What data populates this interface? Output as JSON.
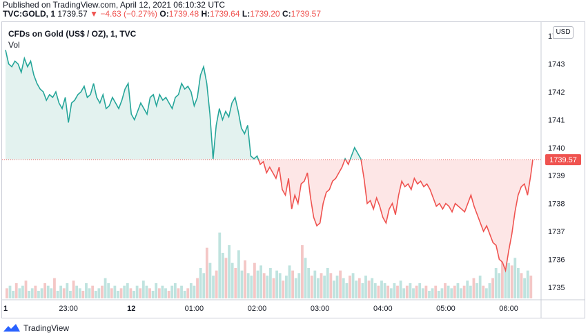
{
  "header": {
    "published": "Published on TradingView.com, April 12, 2021 06:10:32 UTC",
    "symbol": "TVC:GOLD, 1",
    "last": "1739.57",
    "change": "−4.63 (−0.27%)",
    "o_label": "O:",
    "o_value": "1739.48",
    "h_label": "H:",
    "h_value": "1739.64",
    "l_label": "L:",
    "l_value": "1739.20",
    "c_label": "C:",
    "c_value": "1739.57"
  },
  "legend": {
    "title": "CFDs on Gold (US$ / OZ), 1, TVC",
    "vol": "Vol"
  },
  "currency_button": "USD",
  "brand": "TradingView",
  "colors": {
    "up": "#26a69a",
    "down": "#ef5350",
    "up_fill": "#e3f2ef",
    "down_fill": "#fde6e6",
    "grid": "#f0f3fa"
  },
  "chart_data": {
    "type": "area",
    "title": "CFDs on Gold (US$ / OZ), 1, TVC",
    "baseline": 1739.57,
    "last_price_label": "1739.57",
    "ylim": [
      1734.6,
      1744.3
    ],
    "y_ticks": [
      1735,
      1736,
      1737,
      1738,
      1739,
      1740,
      1741,
      1742,
      1743,
      1744
    ],
    "x_ticks": [
      "1",
      "23:00",
      "12",
      "01:00",
      "02:00",
      "03:00",
      "04:00",
      "05:00",
      "06:00"
    ],
    "x_tick_index": [
      0,
      60,
      120,
      180,
      240,
      300,
      360,
      420,
      480
    ],
    "series": [
      {
        "name": "Price",
        "points": [
          [
            0,
            1743.5
          ],
          [
            3,
            1743.0
          ],
          [
            6,
            1742.9
          ],
          [
            9,
            1743.1
          ],
          [
            12,
            1743.0
          ],
          [
            15,
            1742.7
          ],
          [
            18,
            1743.2
          ],
          [
            21,
            1742.9
          ],
          [
            24,
            1743.1
          ],
          [
            27,
            1742.6
          ],
          [
            30,
            1742.3
          ],
          [
            33,
            1742.1
          ],
          [
            36,
            1742.0
          ],
          [
            39,
            1741.7
          ],
          [
            42,
            1741.9
          ],
          [
            45,
            1741.8
          ],
          [
            48,
            1742.0
          ],
          [
            51,
            1741.6
          ],
          [
            54,
            1741.4
          ],
          [
            57,
            1741.8
          ],
          [
            60,
            1740.9
          ],
          [
            63,
            1741.6
          ],
          [
            66,
            1741.7
          ],
          [
            69,
            1741.9
          ],
          [
            72,
            1742.0
          ],
          [
            75,
            1742.2
          ],
          [
            78,
            1741.8
          ],
          [
            81,
            1741.9
          ],
          [
            84,
            1742.3
          ],
          [
            87,
            1741.8
          ],
          [
            90,
            1741.6
          ],
          [
            93,
            1741.9
          ],
          [
            96,
            1741.4
          ],
          [
            99,
            1741.5
          ],
          [
            102,
            1741.8
          ],
          [
            105,
            1741.6
          ],
          [
            108,
            1741.4
          ],
          [
            111,
            1741.7
          ],
          [
            114,
            1742.1
          ],
          [
            117,
            1742.3
          ],
          [
            120,
            1741.2
          ],
          [
            123,
            1741.0
          ],
          [
            126,
            1741.3
          ],
          [
            129,
            1741.6
          ],
          [
            132,
            1741.4
          ],
          [
            135,
            1741.2
          ],
          [
            138,
            1741.8
          ],
          [
            141,
            1741.9
          ],
          [
            144,
            1741.5
          ],
          [
            147,
            1741.9
          ],
          [
            150,
            1741.7
          ],
          [
            153,
            1741.8
          ],
          [
            156,
            1741.6
          ],
          [
            159,
            1741.4
          ],
          [
            162,
            1741.8
          ],
          [
            165,
            1741.9
          ],
          [
            168,
            1742.3
          ],
          [
            171,
            1742.1
          ],
          [
            174,
            1742.2
          ],
          [
            177,
            1742.0
          ],
          [
            180,
            1741.5
          ],
          [
            183,
            1741.8
          ],
          [
            186,
            1742.6
          ],
          [
            189,
            1742.9
          ],
          [
            192,
            1742.3
          ],
          [
            195,
            1741.2
          ],
          [
            198,
            1739.6
          ],
          [
            201,
            1740.8
          ],
          [
            204,
            1741.4
          ],
          [
            207,
            1741.0
          ],
          [
            210,
            1741.3
          ],
          [
            213,
            1741.1
          ],
          [
            216,
            1741.6
          ],
          [
            219,
            1741.8
          ],
          [
            222,
            1741.3
          ],
          [
            225,
            1740.7
          ],
          [
            228,
            1740.5
          ],
          [
            231,
            1740.8
          ],
          [
            234,
            1739.7
          ],
          [
            237,
            1739.6
          ],
          [
            240,
            1739.7
          ],
          [
            243,
            1739.4
          ],
          [
            246,
            1739.5
          ],
          [
            249,
            1739.1
          ],
          [
            252,
            1739.3
          ],
          [
            255,
            1739.1
          ],
          [
            258,
            1738.9
          ],
          [
            261,
            1739.3
          ],
          [
            264,
            1738.5
          ],
          [
            267,
            1738.3
          ],
          [
            270,
            1738.9
          ],
          [
            273,
            1737.8
          ],
          [
            276,
            1738.3
          ],
          [
            279,
            1738.0
          ],
          [
            282,
            1738.7
          ],
          [
            285,
            1738.8
          ],
          [
            288,
            1739.1
          ],
          [
            291,
            1738.2
          ],
          [
            294,
            1737.5
          ],
          [
            297,
            1737.2
          ],
          [
            300,
            1737.3
          ],
          [
            303,
            1738.0
          ],
          [
            306,
            1738.4
          ],
          [
            309,
            1738.5
          ],
          [
            312,
            1738.8
          ],
          [
            315,
            1738.9
          ],
          [
            318,
            1739.1
          ],
          [
            321,
            1739.3
          ],
          [
            324,
            1739.6
          ],
          [
            327,
            1739.4
          ],
          [
            330,
            1739.7
          ],
          [
            333,
            1740.0
          ],
          [
            336,
            1739.8
          ],
          [
            339,
            1739.6
          ],
          [
            342,
            1738.9
          ],
          [
            345,
            1738.0
          ],
          [
            348,
            1738.1
          ],
          [
            351,
            1737.8
          ],
          [
            354,
            1738.2
          ],
          [
            357,
            1737.9
          ],
          [
            360,
            1737.5
          ],
          [
            363,
            1737.3
          ],
          [
            366,
            1737.8
          ],
          [
            369,
            1738.0
          ],
          [
            372,
            1737.6
          ],
          [
            375,
            1738.3
          ],
          [
            378,
            1738.8
          ],
          [
            381,
            1738.6
          ],
          [
            384,
            1738.7
          ],
          [
            387,
            1738.5
          ],
          [
            390,
            1738.9
          ],
          [
            393,
            1738.7
          ],
          [
            396,
            1738.8
          ],
          [
            399,
            1738.6
          ],
          [
            402,
            1738.7
          ],
          [
            405,
            1738.5
          ],
          [
            408,
            1738.2
          ],
          [
            411,
            1737.9
          ],
          [
            414,
            1738.0
          ],
          [
            417,
            1737.8
          ],
          [
            420,
            1738.0
          ],
          [
            423,
            1737.9
          ],
          [
            426,
            1737.7
          ],
          [
            429,
            1738.0
          ],
          [
            432,
            1737.9
          ],
          [
            435,
            1737.8
          ],
          [
            438,
            1737.7
          ],
          [
            441,
            1738.0
          ],
          [
            444,
            1738.3
          ],
          [
            447,
            1737.9
          ],
          [
            450,
            1737.6
          ],
          [
            453,
            1737.3
          ],
          [
            456,
            1737.0
          ],
          [
            459,
            1737.2
          ],
          [
            462,
            1736.9
          ],
          [
            465,
            1736.6
          ],
          [
            468,
            1736.5
          ],
          [
            471,
            1736.0
          ],
          [
            474,
            1735.9
          ],
          [
            477,
            1735.6
          ],
          [
            480,
            1736.3
          ],
          [
            483,
            1736.9
          ],
          [
            486,
            1737.7
          ],
          [
            489,
            1738.3
          ],
          [
            492,
            1738.6
          ],
          [
            495,
            1738.7
          ],
          [
            498,
            1738.3
          ],
          [
            501,
            1739.0
          ],
          [
            503,
            1739.57
          ]
        ]
      },
      {
        "name": "Vol",
        "values": [
          4,
          5,
          3,
          6,
          4,
          5,
          7,
          3,
          4,
          5,
          3,
          4,
          6,
          5,
          4,
          8,
          3,
          5,
          4,
          6,
          3,
          7,
          5,
          4,
          3,
          6,
          4,
          5,
          3,
          4,
          5,
          8,
          6,
          4,
          5,
          3,
          4,
          5,
          6,
          4,
          3,
          5,
          4,
          7,
          5,
          4,
          3,
          6,
          4,
          5,
          4,
          3,
          5,
          6,
          4,
          5,
          3,
          4,
          6,
          5,
          8,
          12,
          10,
          20,
          14,
          9,
          11,
          26,
          18,
          16,
          21,
          14,
          12,
          19,
          11,
          15,
          10,
          9,
          14,
          11,
          13,
          10,
          9,
          12,
          8,
          11,
          10,
          7,
          9,
          13,
          11,
          8,
          10,
          21,
          16,
          12,
          9,
          11,
          8,
          10,
          9,
          12,
          10,
          7,
          9,
          11,
          8,
          6,
          9,
          10,
          7,
          8,
          6,
          9,
          7,
          8,
          6,
          5,
          7,
          6,
          5,
          4,
          6,
          5,
          7,
          4,
          5,
          6,
          4,
          5,
          6,
          4,
          5,
          3,
          4,
          5,
          3,
          4,
          6,
          5,
          4,
          5,
          6,
          4,
          5,
          7,
          5,
          8,
          6,
          9,
          5,
          4,
          6,
          8,
          12,
          10,
          15,
          18,
          14,
          13,
          16,
          12,
          10,
          8,
          11,
          9
        ]
      }
    ],
    "vol_max": 30
  }
}
